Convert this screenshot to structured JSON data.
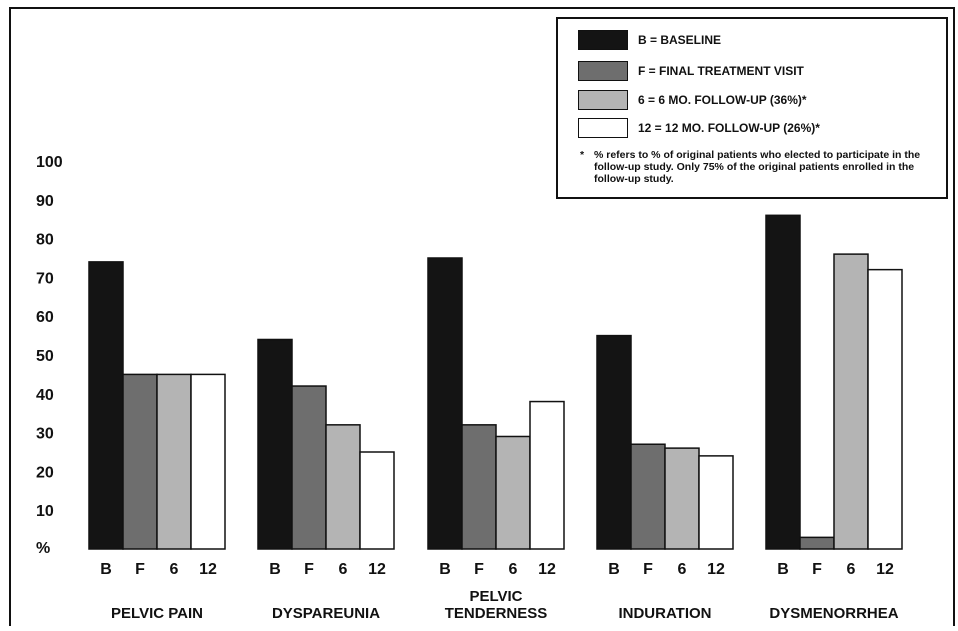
{
  "chart_data": {
    "type": "bar",
    "title": "",
    "ylabel": "%",
    "ylim": [
      0,
      100
    ],
    "yticks": [
      10,
      20,
      30,
      40,
      50,
      60,
      70,
      80,
      90,
      100
    ],
    "grid": false,
    "legend_position": "top-right",
    "categories": [
      "PELVIC PAIN",
      "DYSPAREUNIA",
      "PELVIC TENDERNESS",
      "INDURATION",
      "DYSMENORRHEA"
    ],
    "category_lines": [
      [
        "PELVIC PAIN"
      ],
      [
        "DYSPAREUNIA"
      ],
      [
        "PELVIC",
        "TENDERNESS"
      ],
      [
        "INDURATION"
      ],
      [
        "DYSMENORRHEA"
      ]
    ],
    "bar_labels": [
      "B",
      "F",
      "6",
      "12"
    ],
    "series": [
      {
        "key": "B",
        "legend": "B = BASELINE",
        "color": "#141414",
        "values": [
          74,
          54,
          75,
          55,
          86
        ]
      },
      {
        "key": "F",
        "legend": "F = FINAL TREATMENT VISIT",
        "color": "#6e6e6e",
        "values": [
          45,
          42,
          32,
          27,
          3
        ]
      },
      {
        "key": "6",
        "legend": "6 = 6 MO. FOLLOW-UP (36%)*",
        "color": "#b4b4b4",
        "values": [
          45,
          32,
          29,
          26,
          76
        ]
      },
      {
        "key": "12",
        "legend": "12 = 12 MO. FOLLOW-UP (26%)*",
        "color": "#ffffff",
        "values": [
          45,
          25,
          38,
          24,
          72
        ]
      }
    ],
    "footnote_marker": "*",
    "footnote": "% refers to % of original patients who elected to participate in the follow-up study. Only 75% of the original patients enrolled in the follow-up study."
  }
}
